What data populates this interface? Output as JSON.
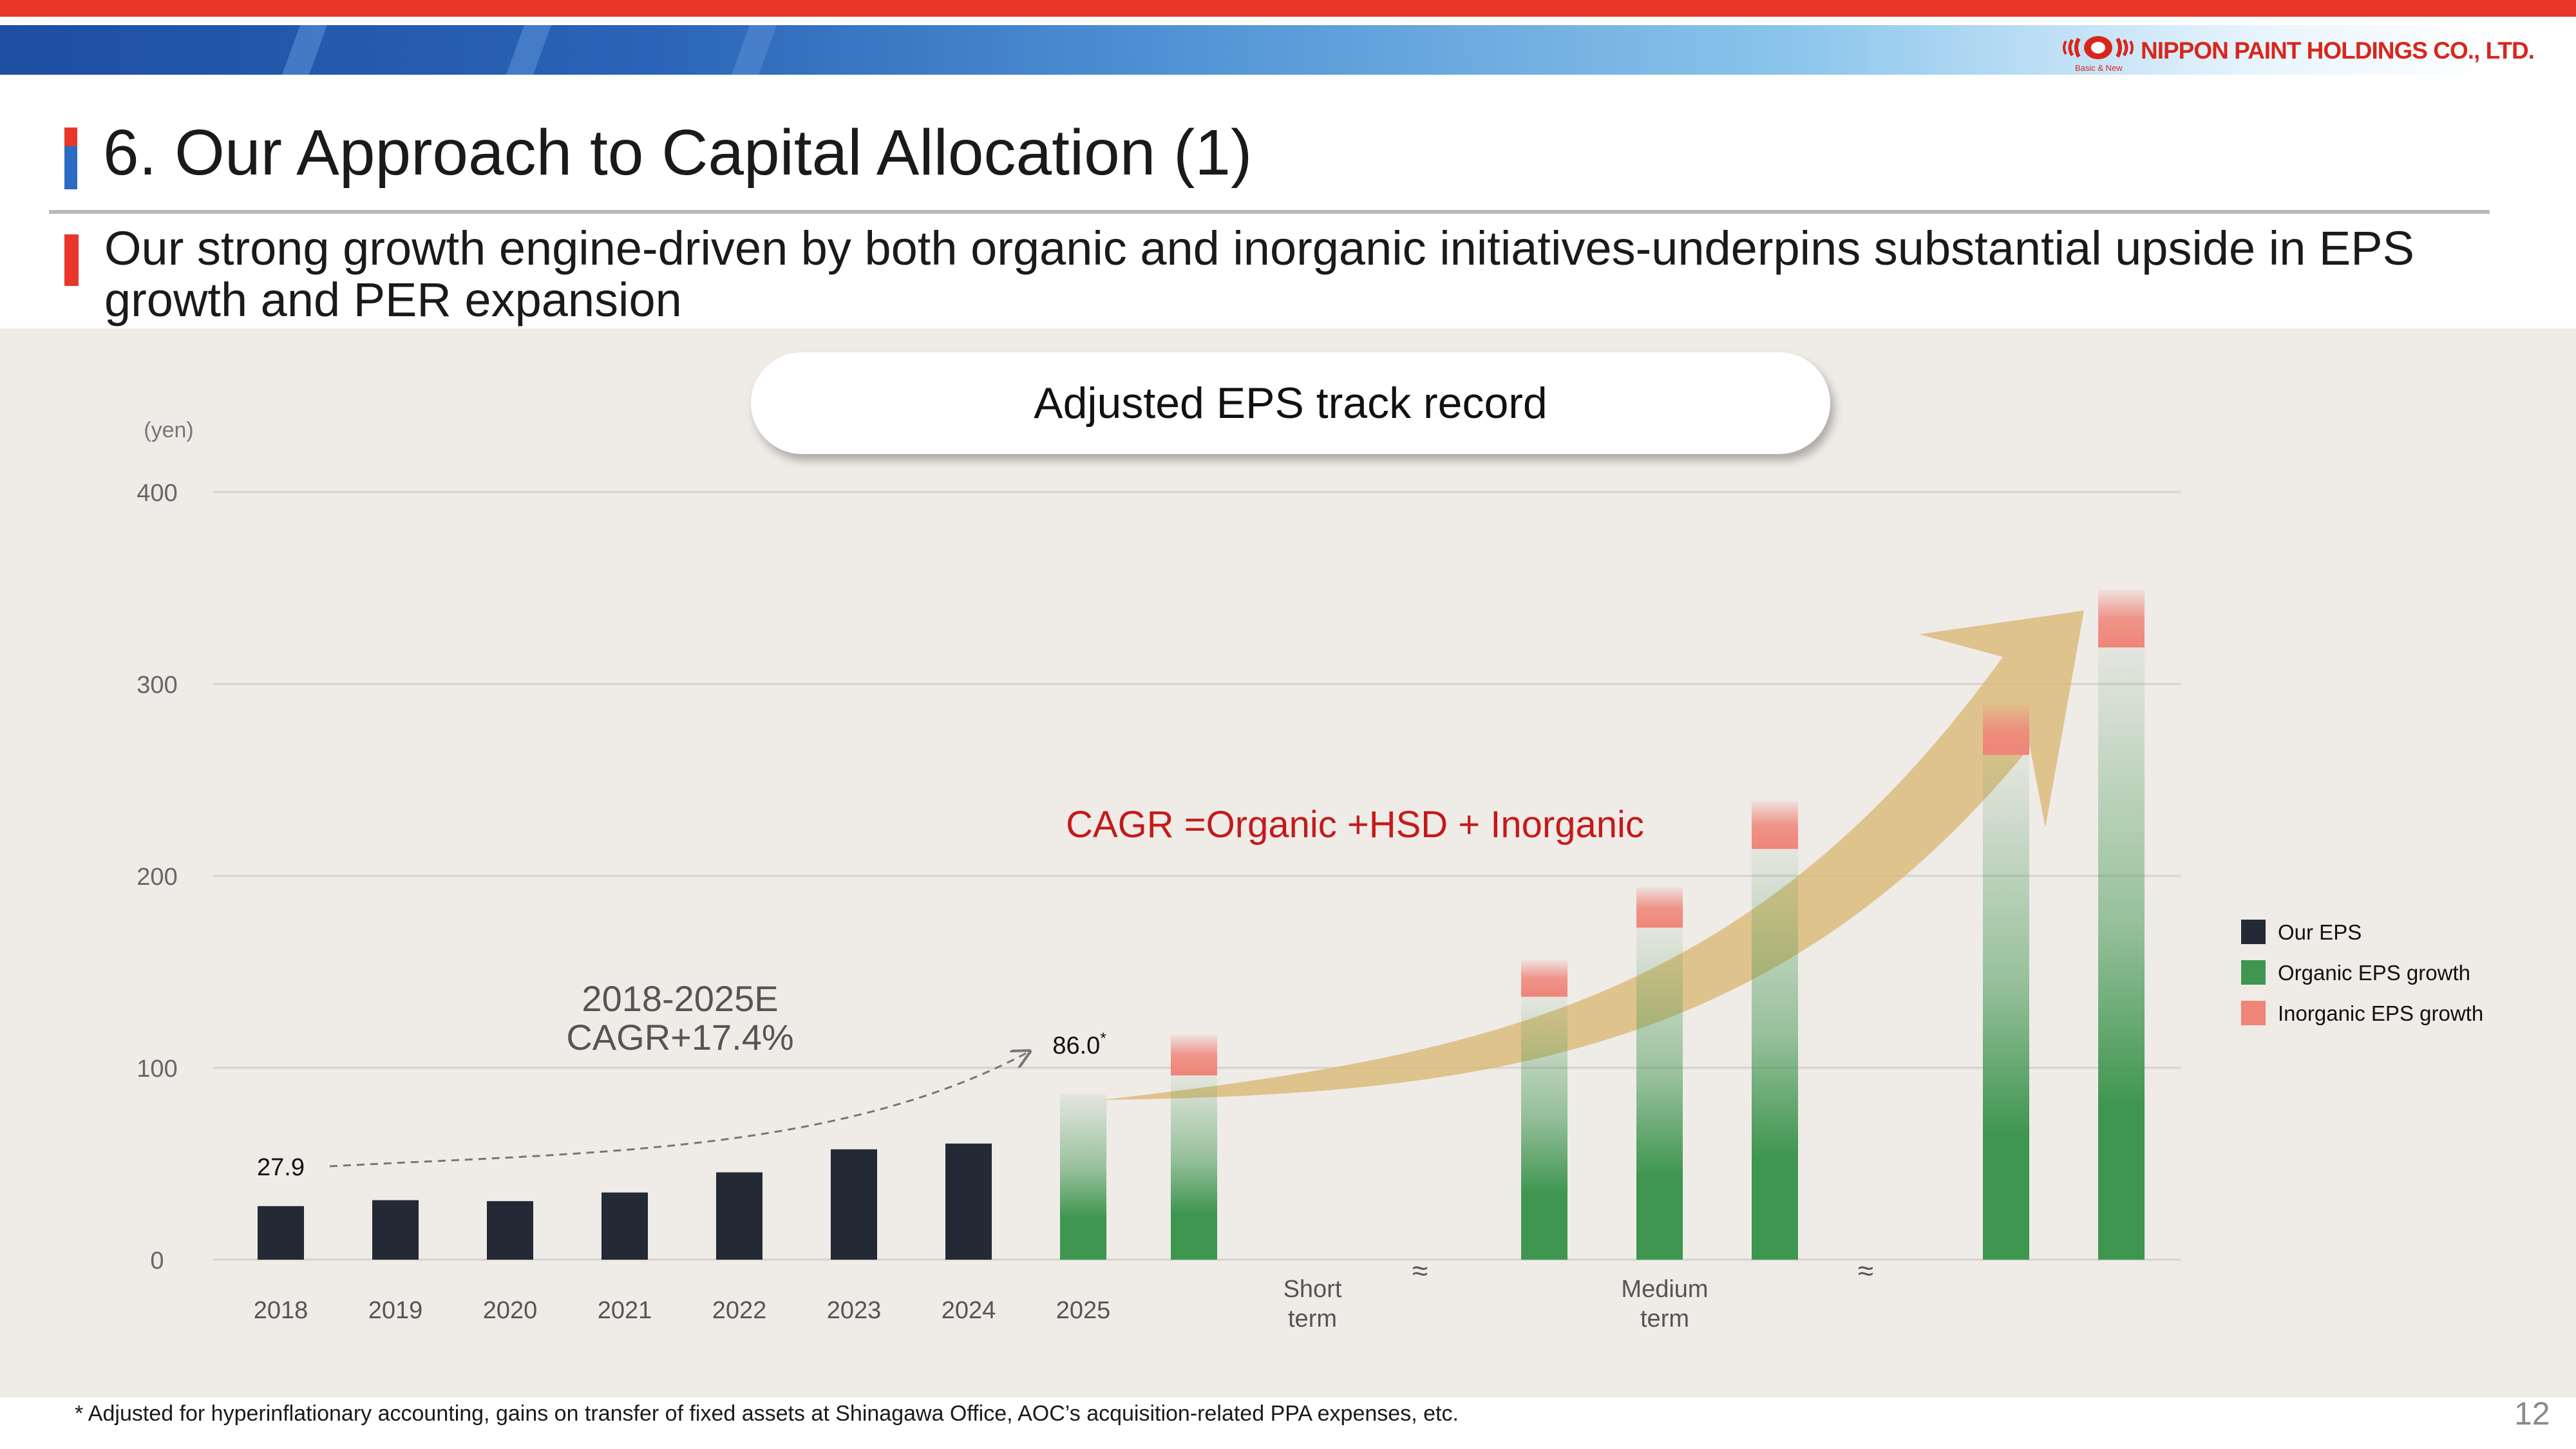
{
  "header": {
    "company": "NIPPON PAINT HOLDINGS CO., LTD.",
    "tagline": "Basic & New",
    "title": "6. Our Approach to Capital Allocation (1)",
    "subtitle": "Our strong growth engine-driven by both organic and inorganic initiatives-underpins substantial upside in EPS growth and PER expansion"
  },
  "colors": {
    "our_eps": "#232a35",
    "organic": "#3f9650",
    "inorganic": "#ef8579",
    "arrow": "#d9b66f",
    "cagr_text": "#c41a1a",
    "accent_red": "#e8372a",
    "accent_blue": "#2b6bc2"
  },
  "chart_data": {
    "type": "bar",
    "title": "Adjusted EPS track record",
    "ylabel": "(yen)",
    "ylim": [
      0,
      400
    ],
    "yticks": [
      0,
      100,
      200,
      300,
      400
    ],
    "grid": true,
    "categories": [
      "2018",
      "2019",
      "2020",
      "2021",
      "2022",
      "2023",
      "2024",
      "2025",
      "Short term",
      "",
      "Medium term",
      "",
      "",
      ""
    ],
    "series": [
      {
        "name": "Our EPS",
        "values": [
          27.9,
          31,
          30.5,
          35,
          45.5,
          57.5,
          60.5,
          null,
          null,
          null,
          null,
          null,
          null,
          null
        ]
      },
      {
        "name": "Organic EPS growth",
        "values": [
          null,
          null,
          null,
          null,
          null,
          null,
          null,
          86,
          96,
          137,
          173,
          214,
          263,
          319
        ]
      },
      {
        "name": "Inorganic EPS growth",
        "values": [
          null,
          null,
          null,
          null,
          null,
          null,
          null,
          null,
          21,
          19,
          21,
          25,
          26,
          30
        ]
      }
    ],
    "break_markers": [
      "≈",
      "≈"
    ],
    "annotations": {
      "start_label": "27.9",
      "end_label": "86.0",
      "end_label_suffix": "*",
      "cagr_period": "2018-2025E",
      "cagr_value": "CAGR+17.4%",
      "cagr_formula": "CAGR =Organic +HSD + Inorganic"
    },
    "legend": {
      "position": "right",
      "entries": [
        "Our EPS",
        "Organic EPS growth",
        "Inorganic EPS growth"
      ]
    }
  },
  "footer": {
    "footnote": "* Adjusted for hyperinflationary accounting, gains on transfer of fixed assets at Shinagawa Office, AOC’s acquisition-related PPA expenses, etc.",
    "page_number": "12"
  }
}
